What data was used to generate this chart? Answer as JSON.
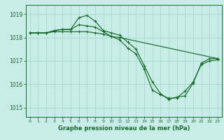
{
  "title": "Graphe pression niveau de la mer (hPa)",
  "bg_color": "#c8ece8",
  "grid_color": "#a8d8d0",
  "line_color": "#1a6b2a",
  "tick_color": "#1a6b2a",
  "label_color": "#1a6b2a",
  "xlim": [
    -0.5,
    23.5
  ],
  "ylim": [
    1014.6,
    1019.4
  ],
  "yticks": [
    1015,
    1016,
    1017,
    1018,
    1019
  ],
  "xticks": [
    0,
    1,
    2,
    3,
    4,
    5,
    6,
    7,
    8,
    9,
    10,
    11,
    12,
    13,
    14,
    15,
    16,
    17,
    18,
    19,
    20,
    21,
    22,
    23
  ],
  "line1_x": [
    0,
    1,
    2,
    3,
    4,
    5,
    6,
    7,
    8,
    9,
    10,
    11,
    12,
    13,
    14,
    15,
    16,
    17,
    18,
    19,
    20,
    21,
    22,
    23
  ],
  "line1_y": [
    1018.2,
    1018.2,
    1018.2,
    1018.3,
    1018.35,
    1018.35,
    1018.85,
    1018.95,
    1018.7,
    1018.3,
    1018.2,
    1018.1,
    1017.8,
    1017.5,
    1016.8,
    1016.1,
    1015.6,
    1015.35,
    1015.45,
    1015.5,
    1016.05,
    1016.9,
    1017.1,
    1017.1
  ],
  "line2_x": [
    0,
    1,
    2,
    3,
    4,
    5,
    6,
    7,
    8,
    9,
    10,
    11,
    12,
    13,
    14,
    15,
    16,
    17,
    18,
    19,
    20,
    21,
    22,
    23
  ],
  "line2_y": [
    1018.2,
    1018.2,
    1018.2,
    1018.3,
    1018.35,
    1018.35,
    1018.55,
    1018.5,
    1018.45,
    1018.25,
    1018.05,
    1017.9,
    1017.55,
    1017.3,
    1016.65,
    1015.75,
    1015.55,
    1015.4,
    1015.42,
    1015.7,
    1016.1,
    1016.85,
    1017.0,
    1017.05
  ],
  "line3_x": [
    0,
    1,
    2,
    3,
    4,
    5,
    6,
    7,
    8,
    9,
    10,
    11,
    23
  ],
  "line3_y": [
    1018.2,
    1018.2,
    1018.2,
    1018.25,
    1018.25,
    1018.25,
    1018.25,
    1018.25,
    1018.2,
    1018.15,
    1018.05,
    1018.0,
    1017.1
  ]
}
